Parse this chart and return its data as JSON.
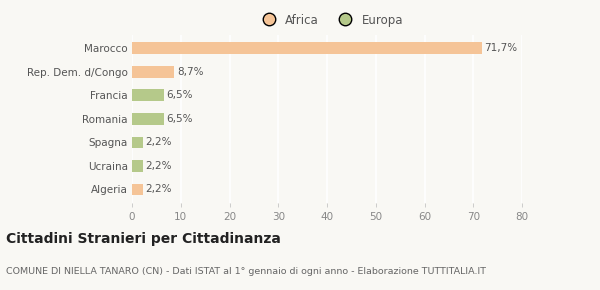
{
  "categories": [
    "Algeria",
    "Ucraina",
    "Spagna",
    "Romania",
    "Francia",
    "Rep. Dem. d/Congo",
    "Marocco"
  ],
  "values": [
    2.2,
    2.2,
    2.2,
    6.5,
    6.5,
    8.7,
    71.7
  ],
  "labels": [
    "2,2%",
    "2,2%",
    "2,2%",
    "6,5%",
    "6,5%",
    "8,7%",
    "71,7%"
  ],
  "colors": [
    "#f5c497",
    "#b5c98a",
    "#b5c98a",
    "#b5c98a",
    "#b5c98a",
    "#f5c497",
    "#f5c497"
  ],
  "legend_entries": [
    {
      "label": "Africa",
      "color": "#f5c497"
    },
    {
      "label": "Europa",
      "color": "#b5c98a"
    }
  ],
  "xlim": [
    0,
    80
  ],
  "xticks": [
    0,
    10,
    20,
    30,
    40,
    50,
    60,
    70,
    80
  ],
  "title": "Cittadini Stranieri per Cittadinanza",
  "subtitle": "COMUNE DI NIELLA TANARO (CN) - Dati ISTAT al 1° gennaio di ogni anno - Elaborazione TUTTITALIA.IT",
  "background_color": "#f9f8f4",
  "grid_color": "#ffffff",
  "bar_height": 0.5,
  "label_fontsize": 7.5,
  "ytick_fontsize": 7.5,
  "xtick_fontsize": 7.5,
  "title_fontsize": 10,
  "subtitle_fontsize": 6.8
}
